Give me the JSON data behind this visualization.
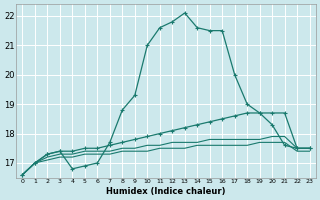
{
  "xlabel": "Humidex (Indice chaleur)",
  "bg_color": "#cce8ec",
  "grid_color": "#ffffff",
  "line_color": "#1a7a6e",
  "xlim": [
    -0.5,
    23.5
  ],
  "ylim": [
    16.5,
    22.4
  ],
  "yticks": [
    17,
    18,
    19,
    20,
    21,
    22
  ],
  "xticks": [
    0,
    1,
    2,
    3,
    4,
    5,
    6,
    7,
    8,
    9,
    10,
    11,
    12,
    13,
    14,
    15,
    16,
    17,
    18,
    19,
    20,
    21,
    22,
    23
  ],
  "curve1_x": [
    0,
    1,
    2,
    3,
    4,
    5,
    6,
    7,
    8,
    9,
    10,
    11,
    12,
    13,
    14,
    15,
    16,
    17,
    18,
    19,
    20,
    21,
    22,
    23
  ],
  "curve1_y": [
    16.6,
    17.0,
    17.3,
    17.4,
    16.8,
    16.9,
    17.0,
    17.7,
    18.8,
    19.3,
    21.0,
    21.6,
    21.8,
    22.1,
    21.6,
    21.5,
    21.5,
    20.0,
    19.0,
    18.7,
    18.3,
    17.6,
    17.5,
    17.5
  ],
  "curve2_x": [
    0,
    1,
    2,
    3,
    4,
    5,
    6,
    7,
    8,
    9,
    10,
    11,
    12,
    13,
    14,
    15,
    16,
    17,
    18,
    19,
    20,
    21,
    22,
    23
  ],
  "curve2_y": [
    16.6,
    17.0,
    17.3,
    17.4,
    17.4,
    17.5,
    17.5,
    17.6,
    17.7,
    17.8,
    17.9,
    18.0,
    18.1,
    18.2,
    18.3,
    18.4,
    18.5,
    18.6,
    18.7,
    18.7,
    18.7,
    18.7,
    17.5,
    17.5
  ],
  "curve3_x": [
    0,
    1,
    2,
    3,
    4,
    5,
    6,
    7,
    8,
    9,
    10,
    11,
    12,
    13,
    14,
    15,
    16,
    17,
    18,
    19,
    20,
    21,
    22,
    23
  ],
  "curve3_y": [
    16.6,
    17.0,
    17.2,
    17.3,
    17.3,
    17.4,
    17.4,
    17.4,
    17.5,
    17.5,
    17.6,
    17.6,
    17.7,
    17.7,
    17.7,
    17.8,
    17.8,
    17.8,
    17.8,
    17.8,
    17.9,
    17.9,
    17.5,
    17.5
  ],
  "curve4_x": [
    0,
    1,
    2,
    3,
    4,
    5,
    6,
    7,
    8,
    9,
    10,
    11,
    12,
    13,
    14,
    15,
    16,
    17,
    18,
    19,
    20,
    21,
    22,
    23
  ],
  "curve4_y": [
    16.6,
    17.0,
    17.1,
    17.2,
    17.2,
    17.3,
    17.3,
    17.3,
    17.4,
    17.4,
    17.4,
    17.5,
    17.5,
    17.5,
    17.6,
    17.6,
    17.6,
    17.6,
    17.6,
    17.7,
    17.7,
    17.7,
    17.4,
    17.4
  ]
}
